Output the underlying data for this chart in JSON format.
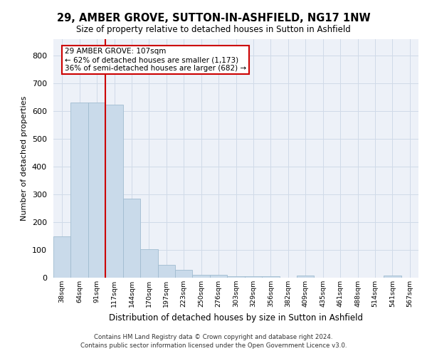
{
  "title_line1": "29, AMBER GROVE, SUTTON-IN-ASHFIELD, NG17 1NW",
  "title_line2": "Size of property relative to detached houses in Sutton in Ashfield",
  "xlabel": "Distribution of detached houses by size in Sutton in Ashfield",
  "ylabel": "Number of detached properties",
  "footer_line1": "Contains HM Land Registry data © Crown copyright and database right 2024.",
  "footer_line2": "Contains public sector information licensed under the Open Government Licence v3.0.",
  "annotation_line1": "29 AMBER GROVE: 107sqm",
  "annotation_line2": "← 62% of detached houses are smaller (1,173)",
  "annotation_line3": "36% of semi-detached houses are larger (682) →",
  "bar_color": "#c9daea",
  "bar_edge_color": "#a0bcd0",
  "vline_color": "#cc0000",
  "annotation_box_edgecolor": "#cc0000",
  "categories": [
    "38sqm",
    "64sqm",
    "91sqm",
    "117sqm",
    "144sqm",
    "170sqm",
    "197sqm",
    "223sqm",
    "250sqm",
    "276sqm",
    "303sqm",
    "329sqm",
    "356sqm",
    "382sqm",
    "409sqm",
    "435sqm",
    "461sqm",
    "488sqm",
    "514sqm",
    "541sqm",
    "567sqm"
  ],
  "values": [
    148,
    632,
    631,
    625,
    286,
    103,
    47,
    29,
    11,
    11,
    5,
    6,
    6,
    0,
    8,
    0,
    0,
    0,
    0,
    8,
    0
  ],
  "ylim": [
    0,
    860
  ],
  "yticks": [
    0,
    100,
    200,
    300,
    400,
    500,
    600,
    700,
    800
  ],
  "vline_x_index": 2.5,
  "grid_color": "#d0dae8",
  "bg_color": "#edf1f8"
}
